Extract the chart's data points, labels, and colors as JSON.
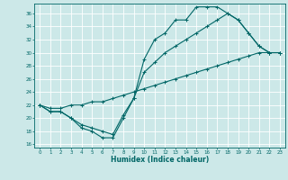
{
  "xlabel": "Humidex (Indice chaleur)",
  "bg_color": "#cce8e8",
  "line_color": "#006666",
  "grid_color": "#ffffff",
  "ylim": [
    15.5,
    37.5
  ],
  "xlim": [
    -0.5,
    23.5
  ],
  "yticks": [
    16,
    18,
    20,
    22,
    24,
    26,
    28,
    30,
    32,
    34,
    36
  ],
  "xticks": [
    0,
    1,
    2,
    3,
    4,
    5,
    6,
    7,
    8,
    9,
    10,
    11,
    12,
    13,
    14,
    15,
    16,
    17,
    18,
    19,
    20,
    21,
    22,
    23
  ],
  "line1_x": [
    0,
    1,
    2,
    3,
    4,
    5,
    6,
    7,
    8,
    9,
    10,
    11,
    12,
    13,
    14,
    15,
    16,
    17,
    18,
    19,
    20,
    21,
    22,
    23
  ],
  "line1_y": [
    22,
    21,
    21,
    20,
    18.5,
    18,
    17,
    17,
    20,
    23,
    29,
    32,
    33,
    35,
    35,
    37,
    37,
    37,
    36,
    35,
    33,
    31,
    30,
    30
  ],
  "line2_x": [
    0,
    1,
    2,
    3,
    4,
    5,
    6,
    7,
    8,
    9,
    10,
    11,
    12,
    13,
    14,
    15,
    16,
    17,
    18,
    19,
    20,
    21,
    22,
    23
  ],
  "line2_y": [
    22,
    21,
    21,
    20,
    19,
    18.5,
    18,
    17.5,
    20.5,
    23,
    27,
    28.5,
    30,
    31,
    32,
    33,
    34,
    35,
    36,
    35,
    33,
    31,
    30,
    30
  ],
  "line3_x": [
    0,
    1,
    2,
    3,
    4,
    5,
    6,
    7,
    8,
    9,
    10,
    11,
    12,
    13,
    14,
    15,
    16,
    17,
    18,
    19,
    20,
    21,
    22,
    23
  ],
  "line3_y": [
    22,
    21.5,
    21.5,
    22,
    22,
    22.5,
    22.5,
    23,
    23.5,
    24,
    24.5,
    25,
    25.5,
    26,
    26.5,
    27,
    27.5,
    28,
    28.5,
    29,
    29.5,
    30,
    30,
    30
  ]
}
